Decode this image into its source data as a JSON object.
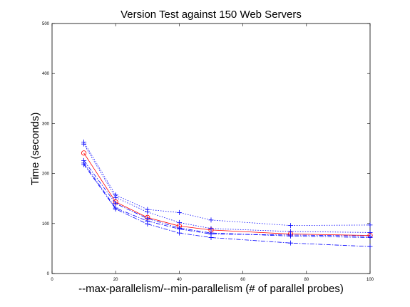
{
  "chart_data": {
    "type": "line",
    "title": "Version Test against 150 Web Servers",
    "xlabel": "--max-parallelism/--min-parallelism (# of parallel probes)",
    "ylabel": "Time (seconds)",
    "xlim": [
      0,
      100
    ],
    "ylim": [
      0,
      500
    ],
    "xticks": [
      0,
      20,
      40,
      60,
      80,
      100
    ],
    "yticks": [
      0,
      100,
      200,
      300,
      400,
      500
    ],
    "grid": false,
    "legend": "none",
    "x": [
      10,
      20,
      30,
      40,
      50,
      75,
      100
    ],
    "series": [
      {
        "color": "#ff0000",
        "marker": "circle",
        "dash": "solid",
        "values": [
          241,
          143,
          112,
          95,
          87,
          79,
          76
        ]
      },
      {
        "color": "#0000ff",
        "marker": "plus",
        "dash": "dotted",
        "values": [
          263,
          157,
          128,
          122,
          107,
          96,
          97
        ]
      },
      {
        "color": "#0000ff",
        "marker": "plus",
        "dash": "dotted",
        "values": [
          259,
          152,
          123,
          102,
          90,
          84,
          82
        ]
      },
      {
        "color": "#0000ff",
        "marker": "plus",
        "dash": "dashdot",
        "values": [
          226,
          140,
          110,
          91,
          81,
          75,
          72
        ]
      },
      {
        "color": "#0000ff",
        "marker": "plus",
        "dash": "dashdot",
        "values": [
          221,
          131,
          105,
          89,
          79,
          77,
          75
        ]
      },
      {
        "color": "#0000ff",
        "marker": "plus",
        "dash": "dashdot",
        "values": [
          218,
          129,
          99,
          81,
          72,
          61,
          54
        ]
      }
    ]
  }
}
